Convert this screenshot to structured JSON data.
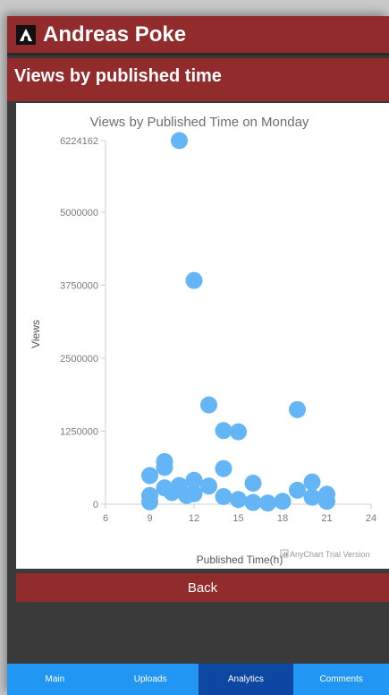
{
  "app": {
    "title": "Andreas Poke"
  },
  "page": {
    "title": "Views by published time"
  },
  "chart_data": {
    "type": "scatter",
    "title": "Views by Published Time on Monday",
    "xlabel": "Published Time(h)",
    "ylabel": "Views",
    "xlim": [
      6,
      24
    ],
    "ylim": [
      0,
      6224162
    ],
    "x_ticks": [
      "6",
      "9",
      "12",
      "15",
      "18",
      "21",
      "24"
    ],
    "y_ticks": [
      "0",
      "1250000",
      "2500000",
      "3750000",
      "5000000",
      "6224162"
    ],
    "y_tick_values": [
      0,
      1250000,
      2500000,
      3750000,
      5000000,
      6224162
    ],
    "x_tick_values": [
      6,
      9,
      12,
      15,
      18,
      21,
      24
    ],
    "color": "#64b5f6",
    "watermark": "AnyChart Trial Version",
    "points": [
      {
        "x": 11.0,
        "y": 6224162
      },
      {
        "x": 12.0,
        "y": 3830000
      },
      {
        "x": 13.0,
        "y": 1700000
      },
      {
        "x": 14.0,
        "y": 1260000
      },
      {
        "x": 15.0,
        "y": 1240000
      },
      {
        "x": 19.0,
        "y": 1620000
      },
      {
        "x": 10.0,
        "y": 730000
      },
      {
        "x": 10.0,
        "y": 630000
      },
      {
        "x": 9.0,
        "y": 490000
      },
      {
        "x": 14.0,
        "y": 610000
      },
      {
        "x": 16.0,
        "y": 360000
      },
      {
        "x": 12.0,
        "y": 410000
      },
      {
        "x": 13.0,
        "y": 310000
      },
      {
        "x": 20.0,
        "y": 380000
      },
      {
        "x": 9.0,
        "y": 150000
      },
      {
        "x": 9.0,
        "y": 40000
      },
      {
        "x": 10.0,
        "y": 280000
      },
      {
        "x": 10.5,
        "y": 200000
      },
      {
        "x": 11.0,
        "y": 320000
      },
      {
        "x": 11.5,
        "y": 150000
      },
      {
        "x": 12.0,
        "y": 180000
      },
      {
        "x": 14.0,
        "y": 130000
      },
      {
        "x": 15.0,
        "y": 80000
      },
      {
        "x": 16.0,
        "y": 30000
      },
      {
        "x": 17.0,
        "y": 20000
      },
      {
        "x": 18.0,
        "y": 50000
      },
      {
        "x": 19.0,
        "y": 240000
      },
      {
        "x": 20.0,
        "y": 120000
      },
      {
        "x": 21.0,
        "y": 170000
      },
      {
        "x": 21.0,
        "y": 50000
      }
    ]
  },
  "actions": {
    "back_label": "Back"
  },
  "nav": {
    "tabs": [
      {
        "label": "Main"
      },
      {
        "label": "Uploads"
      },
      {
        "label": "Analytics"
      },
      {
        "label": "Comments"
      }
    ],
    "active": "Analytics"
  }
}
